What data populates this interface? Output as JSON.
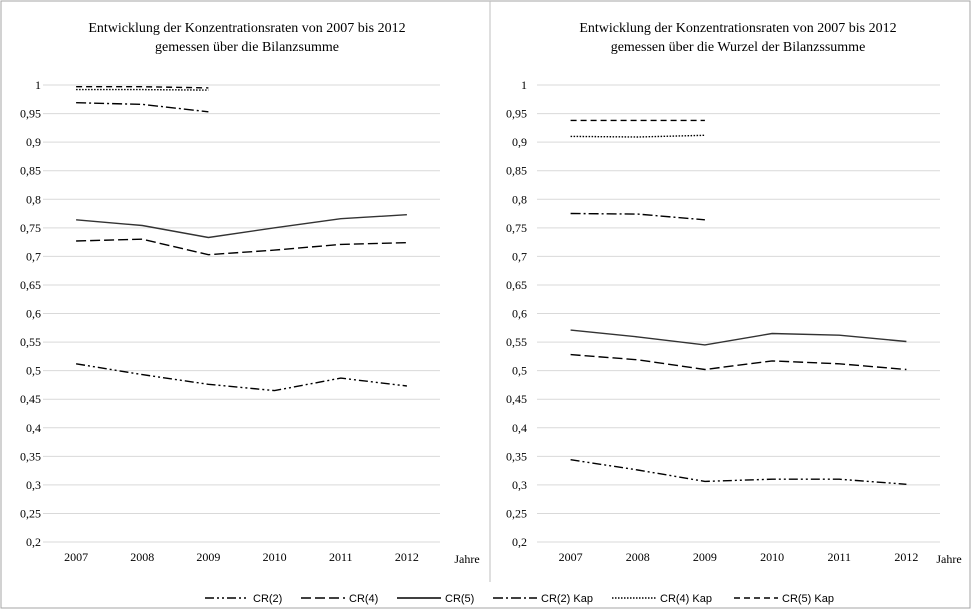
{
  "legend": [
    {
      "label": "CR(2)",
      "dash": "dashdotdot"
    },
    {
      "label": "CR(4)",
      "dash": "longdash"
    },
    {
      "label": "CR(5)",
      "dash": "solid"
    },
    {
      "label": "CR(2) Kap",
      "dash": "dashdot"
    },
    {
      "label": "CR(4) Kap",
      "dash": "dotted"
    },
    {
      "label": "CR(5) Kap",
      "dash": "dashed"
    }
  ],
  "chart_data": [
    {
      "type": "line",
      "title_lines": [
        "Entwicklung der Konzentrationsraten von 2007 bis 2012",
        "gemessen über die Bilanzsumme"
      ],
      "x_unit_label": "Jahre",
      "categories": [
        "2007",
        "2008",
        "2009",
        "2010",
        "2011",
        "2012"
      ],
      "ylim": [
        0.2,
        1
      ],
      "yticks": [
        "0,2",
        "0,25",
        "0,3",
        "0,35",
        "0,4",
        "0,45",
        "0,5",
        "0,55",
        "0,6",
        "0,65",
        "0,7",
        "0,75",
        "0,8",
        "0,85",
        "0,9",
        "0,95",
        "1"
      ],
      "grid": true,
      "series": [
        {
          "name": "CR(2)",
          "values": [
            0.512,
            0.493,
            0.476,
            0.465,
            0.487,
            0.473
          ]
        },
        {
          "name": "CR(4)",
          "values": [
            0.727,
            0.73,
            0.703,
            0.711,
            0.721,
            0.724
          ]
        },
        {
          "name": "CR(5)",
          "values": [
            0.764,
            0.754,
            0.733,
            0.75,
            0.766,
            0.773
          ]
        },
        {
          "name": "CR(2) Kap",
          "values": [
            0.969,
            0.966,
            0.953,
            null,
            null,
            null
          ]
        },
        {
          "name": "CR(4) Kap",
          "values": [
            0.992,
            0.992,
            0.991,
            null,
            null,
            null
          ]
        },
        {
          "name": "CR(5) Kap",
          "values": [
            0.997,
            0.997,
            0.995,
            null,
            null,
            null
          ]
        }
      ]
    },
    {
      "type": "line",
      "title_lines": [
        "Entwicklung der Konzentrationsraten von 2007 bis 2012",
        "gemessen über die Wurzel der Bilanzssumme"
      ],
      "x_unit_label": "Jahre",
      "categories": [
        "2007",
        "2008",
        "2009",
        "2010",
        "2011",
        "2012"
      ],
      "ylim": [
        0.2,
        1
      ],
      "yticks": [
        "0,2",
        "0,25",
        "0,3",
        "0,35",
        "0,4",
        "0,45",
        "0,5",
        "0,55",
        "0,6",
        "0,65",
        "0,7",
        "0,75",
        "0,8",
        "0,85",
        "0,9",
        "0,95",
        "1"
      ],
      "grid": true,
      "series": [
        {
          "name": "CR(2)",
          "values": [
            0.344,
            0.326,
            0.306,
            0.31,
            0.31,
            0.301
          ]
        },
        {
          "name": "CR(4)",
          "values": [
            0.528,
            0.519,
            0.502,
            0.517,
            0.512,
            0.502
          ]
        },
        {
          "name": "CR(5)",
          "values": [
            0.571,
            0.559,
            0.545,
            0.565,
            0.562,
            0.551
          ]
        },
        {
          "name": "CR(2) Kap",
          "values": [
            0.775,
            0.774,
            0.764,
            null,
            null,
            null
          ]
        },
        {
          "name": "CR(4) Kap",
          "values": [
            0.91,
            0.909,
            0.912,
            null,
            null,
            null
          ]
        },
        {
          "name": "CR(5) Kap",
          "values": [
            0.938,
            0.938,
            0.938,
            null,
            null,
            null
          ]
        }
      ]
    }
  ]
}
